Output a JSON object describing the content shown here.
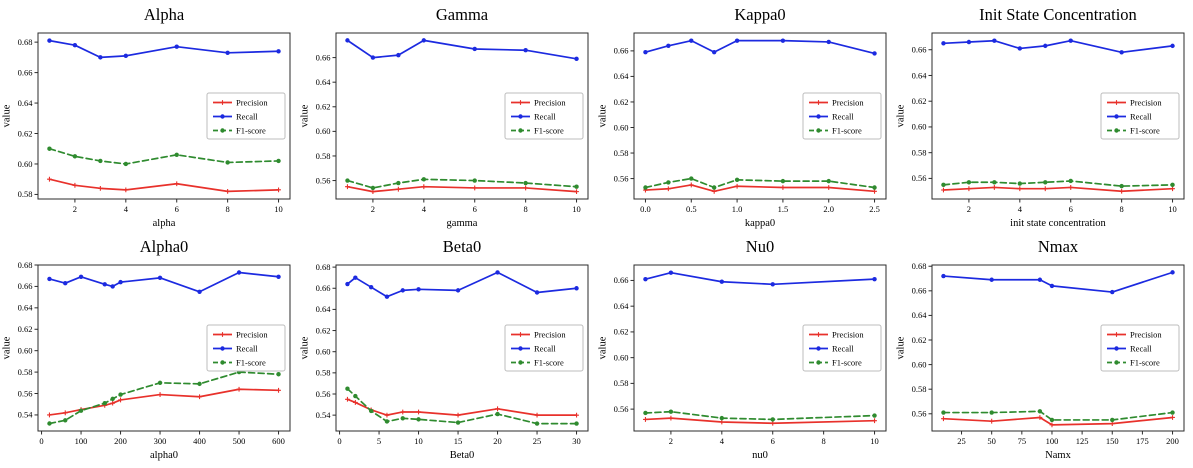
{
  "figure": {
    "background": "#ffffff",
    "frame_color": "#2b2b2b",
    "legend_border_color": "#bdbdbd"
  },
  "chart_data": [
    {
      "type": "line",
      "title": "Alpha",
      "xlabel": "alpha",
      "ylabel": "value",
      "x": [
        1,
        2,
        3,
        4,
        6,
        8,
        10
      ],
      "xticks": [
        2,
        4,
        6,
        8,
        10
      ],
      "xtick_labels": [
        "2",
        "4",
        "6",
        "8",
        "10"
      ],
      "yticks": [
        0.58,
        0.6,
        0.62,
        0.64,
        0.66,
        0.68
      ],
      "ytick_labels": [
        "0.58",
        "0.60",
        "0.62",
        "0.64",
        "0.66",
        "0.68"
      ],
      "xlim": [
        0.55,
        10.45
      ],
      "ylim": [
        0.577,
        0.686
      ],
      "legend": {
        "position": "center right",
        "labels": [
          "Precision",
          "Recall",
          "F1-score"
        ]
      },
      "series": [
        {
          "name": "Precision",
          "color": "#e8312b",
          "dash": "solid",
          "marker": "plus",
          "values": [
            0.59,
            0.586,
            0.584,
            0.583,
            0.587,
            0.582,
            0.583
          ]
        },
        {
          "name": "Recall",
          "color": "#1c2ae0",
          "dash": "solid",
          "marker": "circle",
          "values": [
            0.681,
            0.678,
            0.67,
            0.671,
            0.677,
            0.673,
            0.674
          ]
        },
        {
          "name": "F1-score",
          "color": "#2f8b2f",
          "dash": "dashed",
          "marker": "circle",
          "values": [
            0.61,
            0.605,
            0.602,
            0.6,
            0.606,
            0.601,
            0.602
          ]
        }
      ]
    },
    {
      "type": "line",
      "title": "Gamma",
      "xlabel": "gamma",
      "ylabel": "value",
      "x": [
        1,
        2,
        3,
        4,
        6,
        8,
        10
      ],
      "xticks": [
        2,
        4,
        6,
        8,
        10
      ],
      "xtick_labels": [
        "2",
        "4",
        "6",
        "8",
        "10"
      ],
      "yticks": [
        0.56,
        0.58,
        0.6,
        0.62,
        0.64,
        0.66
      ],
      "ytick_labels": [
        "0.56",
        "0.58",
        "0.60",
        "0.62",
        "0.64",
        "0.66"
      ],
      "xlim": [
        0.55,
        10.45
      ],
      "ylim": [
        0.545,
        0.68
      ],
      "legend": {
        "position": "center right",
        "labels": [
          "Precision",
          "Recall",
          "F1-score"
        ]
      },
      "series": [
        {
          "name": "Precision",
          "color": "#e8312b",
          "dash": "solid",
          "marker": "plus",
          "values": [
            0.555,
            0.551,
            0.553,
            0.555,
            0.554,
            0.554,
            0.551
          ]
        },
        {
          "name": "Recall",
          "color": "#1c2ae0",
          "dash": "solid",
          "marker": "circle",
          "values": [
            0.674,
            0.66,
            0.662,
            0.674,
            0.667,
            0.666,
            0.659
          ]
        },
        {
          "name": "F1-score",
          "color": "#2f8b2f",
          "dash": "dashed",
          "marker": "circle",
          "values": [
            0.56,
            0.554,
            0.558,
            0.561,
            0.56,
            0.558,
            0.555
          ]
        }
      ]
    },
    {
      "type": "line",
      "title": "Kappa0",
      "xlabel": "kappa0",
      "ylabel": "value",
      "x": [
        0.0,
        0.25,
        0.5,
        0.75,
        1.0,
        1.5,
        2.0,
        2.5
      ],
      "xticks": [
        0.0,
        0.5,
        1.0,
        1.5,
        2.0,
        2.5
      ],
      "xtick_labels": [
        "0.0",
        "0.5",
        "1.0",
        "1.5",
        "2.0",
        "2.5"
      ],
      "yticks": [
        0.56,
        0.58,
        0.6,
        0.62,
        0.64,
        0.66
      ],
      "ytick_labels": [
        "0.56",
        "0.58",
        "0.60",
        "0.62",
        "0.64",
        "0.66"
      ],
      "xlim": [
        -0.125,
        2.625
      ],
      "ylim": [
        0.544,
        0.674
      ],
      "legend": {
        "position": "center right",
        "labels": [
          "Precision",
          "Recall",
          "F1-score"
        ]
      },
      "series": [
        {
          "name": "Precision",
          "color": "#e8312b",
          "dash": "solid",
          "marker": "plus",
          "values": [
            0.551,
            0.552,
            0.555,
            0.55,
            0.554,
            0.553,
            0.553,
            0.55
          ]
        },
        {
          "name": "Recall",
          "color": "#1c2ae0",
          "dash": "solid",
          "marker": "circle",
          "values": [
            0.659,
            0.664,
            0.668,
            0.659,
            0.668,
            0.668,
            0.667,
            0.658
          ]
        },
        {
          "name": "F1-score",
          "color": "#2f8b2f",
          "dash": "dashed",
          "marker": "circle",
          "values": [
            0.553,
            0.557,
            0.56,
            0.553,
            0.559,
            0.558,
            0.558,
            0.553
          ]
        }
      ]
    },
    {
      "type": "line",
      "title": "Init State Concentration",
      "xlabel": "init state concentration",
      "ylabel": "value",
      "x": [
        1,
        2,
        3,
        4,
        5,
        6,
        8,
        10
      ],
      "xticks": [
        2,
        4,
        6,
        8,
        10
      ],
      "xtick_labels": [
        "2",
        "4",
        "6",
        "8",
        "10"
      ],
      "yticks": [
        0.56,
        0.58,
        0.6,
        0.62,
        0.64,
        0.66
      ],
      "ytick_labels": [
        "0.56",
        "0.58",
        "0.60",
        "0.62",
        "0.64",
        "0.66"
      ],
      "xlim": [
        0.55,
        10.45
      ],
      "ylim": [
        0.544,
        0.673
      ],
      "legend": {
        "position": "center right",
        "labels": [
          "Precision",
          "Recall",
          "F1-score"
        ]
      },
      "series": [
        {
          "name": "Precision",
          "color": "#e8312b",
          "dash": "solid",
          "marker": "plus",
          "values": [
            0.551,
            0.552,
            0.553,
            0.552,
            0.552,
            0.553,
            0.55,
            0.552
          ]
        },
        {
          "name": "Recall",
          "color": "#1c2ae0",
          "dash": "solid",
          "marker": "circle",
          "values": [
            0.665,
            0.666,
            0.667,
            0.661,
            0.663,
            0.667,
            0.658,
            0.663
          ]
        },
        {
          "name": "F1-score",
          "color": "#2f8b2f",
          "dash": "dashed",
          "marker": "circle",
          "values": [
            0.555,
            0.557,
            0.557,
            0.556,
            0.557,
            0.558,
            0.554,
            0.555
          ]
        }
      ]
    },
    {
      "type": "line",
      "title": "Alpha0",
      "xlabel": "alpha0",
      "ylabel": "value",
      "x": [
        20,
        60,
        100,
        160,
        180,
        200,
        300,
        400,
        500,
        600
      ],
      "xticks": [
        0,
        100,
        200,
        300,
        400,
        500,
        600
      ],
      "xtick_labels": [
        "0",
        "100",
        "200",
        "300",
        "400",
        "500",
        "600"
      ],
      "yticks": [
        0.54,
        0.56,
        0.58,
        0.6,
        0.62,
        0.64,
        0.66,
        0.68
      ],
      "ytick_labels": [
        "0.54",
        "0.56",
        "0.58",
        "0.60",
        "0.62",
        "0.64",
        "0.66",
        "0.68"
      ],
      "xlim": [
        -9,
        629
      ],
      "ylim": [
        0.525,
        0.68
      ],
      "legend": {
        "position": "center right",
        "labels": [
          "Precision",
          "Recall",
          "F1-score"
        ]
      },
      "series": [
        {
          "name": "Precision",
          "color": "#e8312b",
          "dash": "solid",
          "marker": "plus",
          "values": [
            0.54,
            0.542,
            0.545,
            0.549,
            0.551,
            0.554,
            0.559,
            0.557,
            0.564,
            0.563
          ]
        },
        {
          "name": "Recall",
          "color": "#1c2ae0",
          "dash": "solid",
          "marker": "circle",
          "values": [
            0.667,
            0.663,
            0.669,
            0.662,
            0.66,
            0.664,
            0.668,
            0.655,
            0.673,
            0.669
          ]
        },
        {
          "name": "F1-score",
          "color": "#2f8b2f",
          "dash": "dashed",
          "marker": "circle",
          "values": [
            0.532,
            0.535,
            0.544,
            0.551,
            0.555,
            0.559,
            0.57,
            0.569,
            0.58,
            0.578
          ]
        }
      ]
    },
    {
      "type": "line",
      "title": "Beta0",
      "xlabel": "Beta0",
      "ylabel": "value",
      "x": [
        1,
        2,
        4,
        6,
        8,
        10,
        15,
        20,
        25,
        30
      ],
      "xticks": [
        0,
        5,
        10,
        15,
        20,
        25,
        30
      ],
      "xtick_labels": [
        "0",
        "5",
        "10",
        "15",
        "20",
        "25",
        "30"
      ],
      "yticks": [
        0.54,
        0.56,
        0.58,
        0.6,
        0.62,
        0.64,
        0.66,
        0.68
      ],
      "ytick_labels": [
        "0.54",
        "0.56",
        "0.58",
        "0.60",
        "0.62",
        "0.64",
        "0.66",
        "0.68"
      ],
      "xlim": [
        -0.45,
        31.45
      ],
      "ylim": [
        0.525,
        0.682
      ],
      "legend": {
        "position": "center right",
        "labels": [
          "Precision",
          "Recall",
          "F1-score"
        ]
      },
      "series": [
        {
          "name": "Precision",
          "color": "#e8312b",
          "dash": "solid",
          "marker": "plus",
          "values": [
            0.555,
            0.552,
            0.545,
            0.54,
            0.543,
            0.543,
            0.54,
            0.546,
            0.54,
            0.54
          ]
        },
        {
          "name": "Recall",
          "color": "#1c2ae0",
          "dash": "solid",
          "marker": "circle",
          "values": [
            0.664,
            0.67,
            0.661,
            0.652,
            0.658,
            0.659,
            0.658,
            0.675,
            0.656,
            0.66
          ]
        },
        {
          "name": "F1-score",
          "color": "#2f8b2f",
          "dash": "dashed",
          "marker": "circle",
          "values": [
            0.565,
            0.558,
            0.544,
            0.534,
            0.537,
            0.536,
            0.533,
            0.541,
            0.532,
            0.532
          ]
        }
      ]
    },
    {
      "type": "line",
      "title": "Nu0",
      "xlabel": "nu0",
      "ylabel": "value",
      "x": [
        1,
        2,
        4,
        6,
        10
      ],
      "xticks": [
        2,
        4,
        6,
        8,
        10
      ],
      "xtick_labels": [
        "2",
        "4",
        "6",
        "8",
        "10"
      ],
      "yticks": [
        0.56,
        0.58,
        0.6,
        0.62,
        0.64,
        0.66
      ],
      "ytick_labels": [
        "0.56",
        "0.58",
        "0.60",
        "0.62",
        "0.64",
        "0.66"
      ],
      "xlim": [
        0.55,
        10.45
      ],
      "ylim": [
        0.543,
        0.672
      ],
      "legend": {
        "position": "center right",
        "labels": [
          "Precision",
          "Recall",
          "F1-score"
        ]
      },
      "series": [
        {
          "name": "Precision",
          "color": "#e8312b",
          "dash": "solid",
          "marker": "plus",
          "values": [
            0.552,
            0.553,
            0.55,
            0.549,
            0.551
          ]
        },
        {
          "name": "Recall",
          "color": "#1c2ae0",
          "dash": "solid",
          "marker": "circle",
          "values": [
            0.661,
            0.666,
            0.659,
            0.657,
            0.661
          ]
        },
        {
          "name": "F1-score",
          "color": "#2f8b2f",
          "dash": "dashed",
          "marker": "circle",
          "values": [
            0.557,
            0.558,
            0.553,
            0.552,
            0.555
          ]
        }
      ]
    },
    {
      "type": "line",
      "title": "Nmax",
      "xlabel": "Namx",
      "ylabel": "value",
      "x": [
        10,
        50,
        90,
        100,
        150,
        200
      ],
      "xticks": [
        25,
        50,
        75,
        100,
        125,
        150,
        175,
        200
      ],
      "xtick_labels": [
        "25",
        "50",
        "75",
        "100",
        "125",
        "150",
        "175",
        "200"
      ],
      "yticks": [
        0.56,
        0.58,
        0.6,
        0.62,
        0.64,
        0.66,
        0.68
      ],
      "ytick_labels": [
        "0.56",
        "0.58",
        "0.60",
        "0.62",
        "0.64",
        "0.66",
        "0.68"
      ],
      "xlim": [
        0.5,
        209.5
      ],
      "ylim": [
        0.546,
        0.681
      ],
      "legend": {
        "position": "center right",
        "labels": [
          "Precision",
          "Recall",
          "F1-score"
        ]
      },
      "series": [
        {
          "name": "Precision",
          "color": "#e8312b",
          "dash": "solid",
          "marker": "plus",
          "values": [
            0.556,
            0.554,
            0.557,
            0.551,
            0.552,
            0.557
          ]
        },
        {
          "name": "Recall",
          "color": "#1c2ae0",
          "dash": "solid",
          "marker": "circle",
          "values": [
            0.672,
            0.669,
            0.669,
            0.664,
            0.659,
            0.675
          ]
        },
        {
          "name": "F1-score",
          "color": "#2f8b2f",
          "dash": "dashed",
          "marker": "circle",
          "values": [
            0.561,
            0.561,
            0.562,
            0.555,
            0.555,
            0.561
          ]
        }
      ]
    }
  ]
}
